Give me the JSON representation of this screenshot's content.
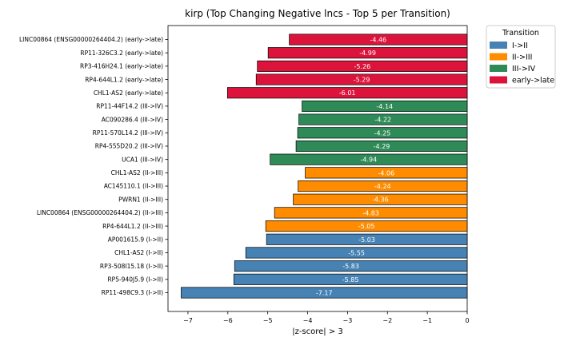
{
  "chart_data": {
    "type": "bar",
    "orientation": "horizontal",
    "title": "kirp (Top Changing Negative lncs - Top 5 per Transition)",
    "xlabel": "|z-score| > 3",
    "xlim": [
      -7.5,
      0
    ],
    "xticks": [
      -7,
      -6,
      -5,
      -4,
      -3,
      -2,
      -1,
      0
    ],
    "legend": {
      "title": "Transition",
      "placement": "outside-right-top",
      "entries": [
        {
          "name": "I->II",
          "color": "#4682b4"
        },
        {
          "name": "II->III",
          "color": "#ff8c00"
        },
        {
          "name": "III->IV",
          "color": "#2e8b57"
        },
        {
          "name": "early->late",
          "color": "#dc143c"
        }
      ]
    },
    "bars": [
      {
        "label": "LINC00864 (ENSG00000264404.2) (early->late)",
        "value": -4.46,
        "value_label": "-4.46",
        "group": "early->late"
      },
      {
        "label": "RP11-326C3.2 (early->late)",
        "value": -4.99,
        "value_label": "-4.99",
        "group": "early->late"
      },
      {
        "label": "RP3-416H24.1 (early->late)",
        "value": -5.26,
        "value_label": "-5.26",
        "group": "early->late"
      },
      {
        "label": "RP4-644L1.2 (early->late)",
        "value": -5.29,
        "value_label": "-5.29",
        "group": "early->late"
      },
      {
        "label": "CHL1-AS2 (early->late)",
        "value": -6.01,
        "value_label": "-6.01",
        "group": "early->late"
      },
      {
        "label": "RP11-44F14.2 (III->IV)",
        "value": -4.14,
        "value_label": "-4.14",
        "group": "III->IV"
      },
      {
        "label": "AC090286.4 (III->IV)",
        "value": -4.22,
        "value_label": "-4.22",
        "group": "III->IV"
      },
      {
        "label": "RP11-570L14.2 (III->IV)",
        "value": -4.25,
        "value_label": "-4.25",
        "group": "III->IV"
      },
      {
        "label": "RP4-555D20.2 (III->IV)",
        "value": -4.29,
        "value_label": "-4.29",
        "group": "III->IV"
      },
      {
        "label": "UCA1 (III->IV)",
        "value": -4.94,
        "value_label": "-4.94",
        "group": "III->IV"
      },
      {
        "label": "CHL1-AS2 (II->III)",
        "value": -4.06,
        "value_label": "-4.06",
        "group": "II->III"
      },
      {
        "label": "AC145110.1 (II->III)",
        "value": -4.24,
        "value_label": "-4.24",
        "group": "II->III"
      },
      {
        "label": "PWRN1 (II->III)",
        "value": -4.36,
        "value_label": "-4.36",
        "group": "II->III"
      },
      {
        "label": "LINC00864 (ENSG00000264404.2) (II->III)",
        "value": -4.83,
        "value_label": "-4.83",
        "group": "II->III"
      },
      {
        "label": "RP4-644L1.2 (II->III)",
        "value": -5.05,
        "value_label": "-5.05",
        "group": "II->III"
      },
      {
        "label": "AP001615.9 (I->II)",
        "value": -5.03,
        "value_label": "-5.03",
        "group": "I->II"
      },
      {
        "label": "CHL1-AS2 (I->II)",
        "value": -5.55,
        "value_label": "-5.55",
        "group": "I->II"
      },
      {
        "label": "RP3-508I15.18 (I->II)",
        "value": -5.83,
        "value_label": "-5.83",
        "group": "I->II"
      },
      {
        "label": "RP5-940J5.9 (I->II)",
        "value": -5.85,
        "value_label": "-5.85",
        "group": "I->II"
      },
      {
        "label": "RP11-498C9.3 (I->II)",
        "value": -7.17,
        "value_label": "-7.17",
        "group": "I->II"
      }
    ]
  }
}
